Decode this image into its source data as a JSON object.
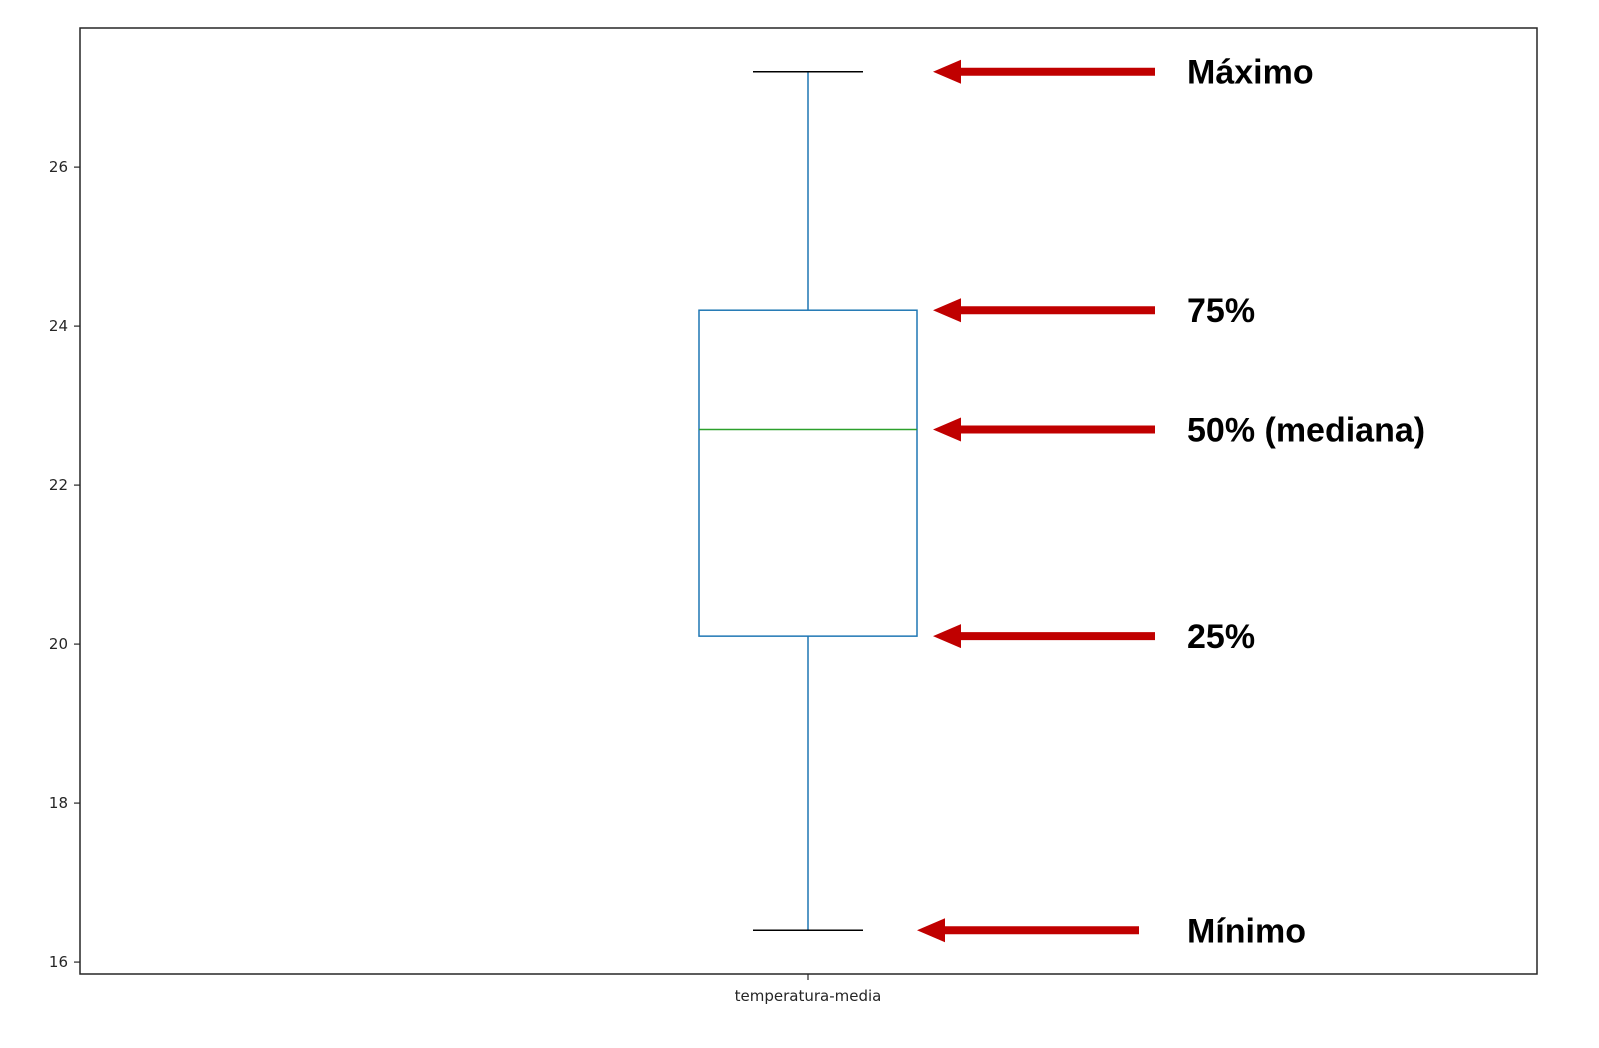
{
  "chart_data": {
    "type": "box",
    "title": "",
    "xlabel": "",
    "ylabel": "",
    "categories": [
      "temperatura-media"
    ],
    "box": {
      "min": 16.4,
      "q1": 20.1,
      "median": 22.7,
      "q3": 24.2,
      "max": 27.2
    },
    "ylim": [
      15.85,
      27.75
    ],
    "yticks": [
      16,
      18,
      20,
      22,
      24,
      26
    ],
    "grid": false,
    "colors": {
      "box": "#1f77b4",
      "median": "#2ca02c",
      "caps": "#000000",
      "arrow": "#c00000",
      "axes": "#262626"
    },
    "annotations": [
      {
        "label": "Máximo",
        "stat": "max"
      },
      {
        "label": "75%",
        "stat": "q3"
      },
      {
        "label": "50% (mediana)",
        "stat": "median"
      },
      {
        "label": "25%",
        "stat": "q1"
      },
      {
        "label": "Mínimo",
        "stat": "min"
      }
    ]
  }
}
